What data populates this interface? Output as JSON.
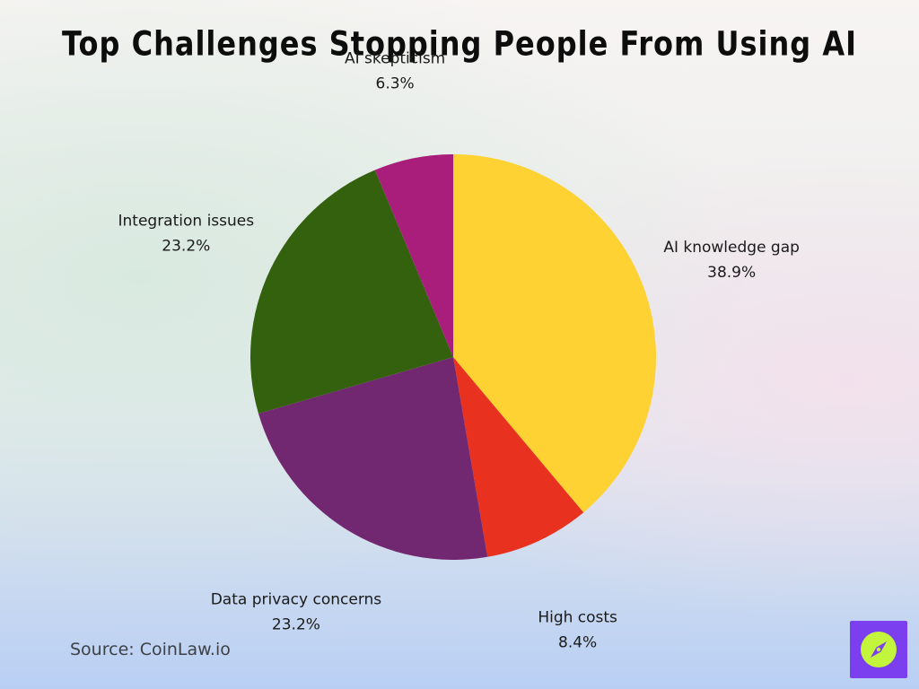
{
  "title": "Top Challenges Stopping People From Using AI",
  "source": "Source: CoinLaw.io",
  "logo": {
    "icon": "compass-icon",
    "background": "#7b3ff0",
    "circle": "#c3f53c"
  },
  "chart_data": {
    "type": "pie",
    "title": "Top Challenges Stopping People From Using AI",
    "start": "12 o'clock",
    "direction": "clockwise",
    "slices": [
      {
        "label": "AI knowledge gap",
        "value": 38.9,
        "value_label": "38.9%",
        "color": "#fed232"
      },
      {
        "label": "High costs",
        "value": 8.4,
        "value_label": "8.4%",
        "color": "#e8311f"
      },
      {
        "label": "Data privacy concerns",
        "value": 23.2,
        "value_label": "23.2%",
        "color": "#722870"
      },
      {
        "label": "Integration issues",
        "value": 23.2,
        "value_label": "23.2%",
        "color": "#33610e"
      },
      {
        "label": "AI skepticism",
        "value": 6.3,
        "value_label": "6.3%",
        "color": "#a81e7a"
      }
    ]
  }
}
